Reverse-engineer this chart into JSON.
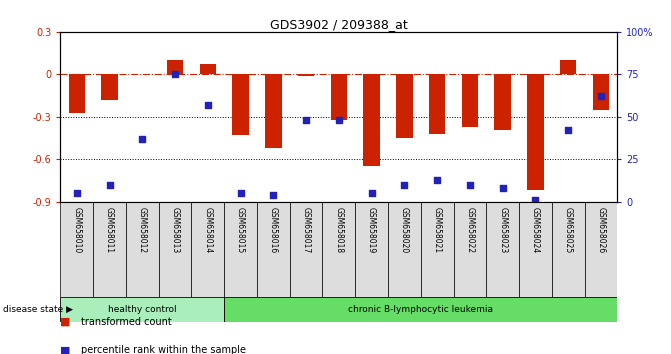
{
  "title": "GDS3902 / 209388_at",
  "samples": [
    "GSM658010",
    "GSM658011",
    "GSM658012",
    "GSM658013",
    "GSM658014",
    "GSM658015",
    "GSM658016",
    "GSM658017",
    "GSM658018",
    "GSM658019",
    "GSM658020",
    "GSM658021",
    "GSM658022",
    "GSM658023",
    "GSM658024",
    "GSM658025",
    "GSM658026"
  ],
  "bar_values": [
    -0.27,
    -0.18,
    0.0,
    0.1,
    0.07,
    -0.43,
    -0.52,
    -0.01,
    -0.32,
    -0.65,
    -0.45,
    -0.42,
    -0.37,
    -0.39,
    -0.82,
    0.1,
    -0.25
  ],
  "percentile_values": [
    5,
    10,
    37,
    75,
    57,
    5,
    4,
    48,
    48,
    5,
    10,
    13,
    10,
    8,
    1,
    42,
    62
  ],
  "healthy_control_count": 5,
  "ylim_left": [
    -0.9,
    0.3
  ],
  "ylim_right": [
    0,
    100
  ],
  "left_ticks": [
    -0.9,
    -0.6,
    -0.3,
    0.0,
    0.3
  ],
  "left_tick_labels": [
    "-0.9",
    "-0.6",
    "-0.3",
    "0",
    "0.3"
  ],
  "right_ticks": [
    0,
    25,
    50,
    75,
    100
  ],
  "right_tick_labels": [
    "0",
    "25",
    "50",
    "75",
    "100%"
  ],
  "bar_color": "#cc2200",
  "dot_color": "#2222bb",
  "healthy_color": "#aaeebb",
  "leukemia_color": "#66dd66",
  "sample_box_color": "#dddddd",
  "bg_color": "#ffffff",
  "zero_line_color": "#cc2200",
  "disease_label": "disease state",
  "healthy_label": "healthy control",
  "leukemia_label": "chronic B-lymphocytic leukemia",
  "legend_bar_label": "transformed count",
  "legend_dot_label": "percentile rank within the sample"
}
